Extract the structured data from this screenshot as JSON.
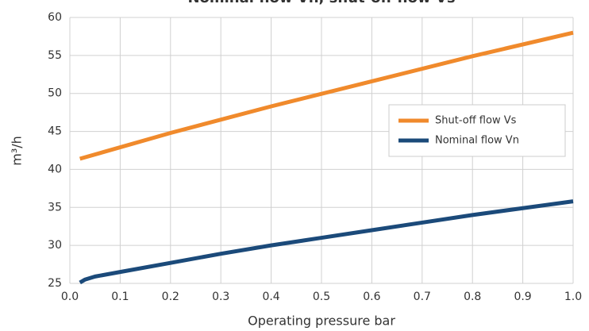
{
  "chart_data": {
    "type": "line",
    "title": "Nominal flow  Vn, shut-off flow  Vs",
    "x_label": "Operating pressure bar",
    "y_label": "m³/h",
    "series": [
      {
        "name": "Shut-off flow  Vs",
        "color": "#f08a2c",
        "x": [
          0.02,
          0.2,
          0.4,
          0.6,
          0.8,
          1.0
        ],
        "values": [
          41.4,
          44.8,
          48.3,
          51.6,
          54.9,
          58.0
        ]
      },
      {
        "name": "Nominal flow  Vn",
        "color": "#1b4a7a",
        "x": [
          0.02,
          0.03,
          0.05,
          0.1,
          0.2,
          0.3,
          0.4,
          0.5,
          0.6,
          0.7,
          0.8,
          0.9,
          1.0
        ],
        "values": [
          25.1,
          25.5,
          25.9,
          26.5,
          27.7,
          28.9,
          30.0,
          31.0,
          32.0,
          33.0,
          34.0,
          34.9,
          35.8
        ]
      }
    ],
    "xlim": [
      0,
      1.0
    ],
    "xticks": [
      {
        "value": 0,
        "label": "0.0"
      },
      0.1,
      0.2,
      0.3,
      0.4,
      0.5,
      0.6,
      0.7,
      0.8,
      0.9,
      {
        "value": 1,
        "label": "1.0"
      }
    ],
    "ylim": [
      25,
      60
    ],
    "yticks": [
      25,
      30,
      35,
      40,
      45,
      50,
      55,
      60
    ],
    "grid": true,
    "legend": "right"
  }
}
